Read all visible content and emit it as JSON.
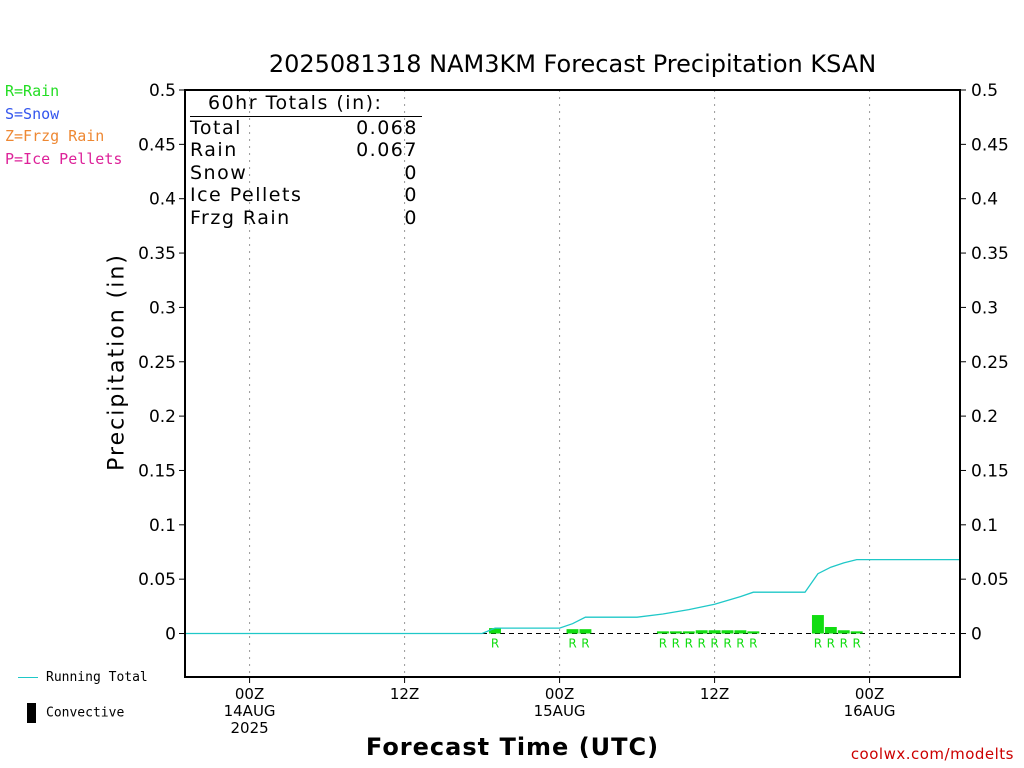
{
  "title": "2025081318 NAM3KM Forecast Precipitation KSAN",
  "legend_types": [
    {
      "label": "R=Rain",
      "color": "#22dd22"
    },
    {
      "label": "S=Snow",
      "color": "#3355ee"
    },
    {
      "label": "Z=Frzg Rain",
      "color": "#ee8833"
    },
    {
      "label": "P=Ice Pellets",
      "color": "#dd2299"
    }
  ],
  "bottom_legend": {
    "running_total": "Running Total",
    "convective": "Convective",
    "running_total_color": "#1fc8c8",
    "convective_color": "#000000"
  },
  "totals": {
    "header": "60hr Totals (in):",
    "rows": [
      {
        "label": "Total",
        "value": "0.068"
      },
      {
        "label": "Rain",
        "value": "0.067"
      },
      {
        "label": "Snow",
        "value": "0"
      },
      {
        "label": "Ice Pellets",
        "value": "0"
      },
      {
        "label": "Frzg Rain",
        "value": "0"
      }
    ]
  },
  "credit": "coolwx.com/modelts",
  "chart_data": {
    "type": "bar",
    "title": "2025081318 NAM3KM Forecast Precipitation KSAN",
    "xlabel": "Forecast Time (UTC)",
    "ylabel": "Precipitation (in)",
    "ylim": [
      -0.04,
      0.5
    ],
    "xlim_hours": [
      -5,
      55
    ],
    "y_ticks": [
      "0",
      "0.05",
      "0.1",
      "0.15",
      "0.2",
      "0.25",
      "0.3",
      "0.35",
      "0.4",
      "0.45",
      "0.5"
    ],
    "x_ticks": [
      {
        "hour": 0,
        "lines": [
          "00Z",
          "14AUG",
          "2025"
        ]
      },
      {
        "hour": 12,
        "lines": [
          "12Z"
        ]
      },
      {
        "hour": 24,
        "lines": [
          "00Z",
          "15AUG"
        ]
      },
      {
        "hour": 36,
        "lines": [
          "12Z"
        ]
      },
      {
        "hour": 48,
        "lines": [
          "00Z",
          "16AUG"
        ]
      }
    ],
    "grid": "vertical dotted at tick hours",
    "bar_color": "#11dd11",
    "line_color": "#1fc8c8",
    "bars": [
      {
        "hour": 19,
        "value": 0.005,
        "ptype": "R"
      },
      {
        "hour": 25,
        "value": 0.004,
        "ptype": "R"
      },
      {
        "hour": 26,
        "value": 0.004,
        "ptype": "R"
      },
      {
        "hour": 32,
        "value": 0.002,
        "ptype": "R"
      },
      {
        "hour": 33,
        "value": 0.002,
        "ptype": "R"
      },
      {
        "hour": 34,
        "value": 0.002,
        "ptype": "R"
      },
      {
        "hour": 35,
        "value": 0.003,
        "ptype": "R"
      },
      {
        "hour": 36,
        "value": 0.003,
        "ptype": "R"
      },
      {
        "hour": 37,
        "value": 0.003,
        "ptype": "R"
      },
      {
        "hour": 38,
        "value": 0.003,
        "ptype": "R"
      },
      {
        "hour": 39,
        "value": 0.002,
        "ptype": "R"
      },
      {
        "hour": 44,
        "value": 0.017,
        "ptype": "R"
      },
      {
        "hour": 45,
        "value": 0.006,
        "ptype": "R"
      },
      {
        "hour": 46,
        "value": 0.003,
        "ptype": "R"
      },
      {
        "hour": 47,
        "value": 0.002,
        "ptype": "R"
      }
    ],
    "running_total": [
      {
        "hour": -5,
        "value": 0
      },
      {
        "hour": 18,
        "value": 0
      },
      {
        "hour": 19,
        "value": 0.005
      },
      {
        "hour": 24,
        "value": 0.005
      },
      {
        "hour": 25,
        "value": 0.009
      },
      {
        "hour": 26,
        "value": 0.015
      },
      {
        "hour": 30,
        "value": 0.015
      },
      {
        "hour": 32,
        "value": 0.018
      },
      {
        "hour": 34,
        "value": 0.022
      },
      {
        "hour": 36,
        "value": 0.027
      },
      {
        "hour": 38,
        "value": 0.034
      },
      {
        "hour": 39,
        "value": 0.038
      },
      {
        "hour": 43,
        "value": 0.038
      },
      {
        "hour": 44,
        "value": 0.055
      },
      {
        "hour": 45,
        "value": 0.061
      },
      {
        "hour": 46,
        "value": 0.065
      },
      {
        "hour": 47,
        "value": 0.068
      },
      {
        "hour": 55,
        "value": 0.068
      }
    ]
  }
}
